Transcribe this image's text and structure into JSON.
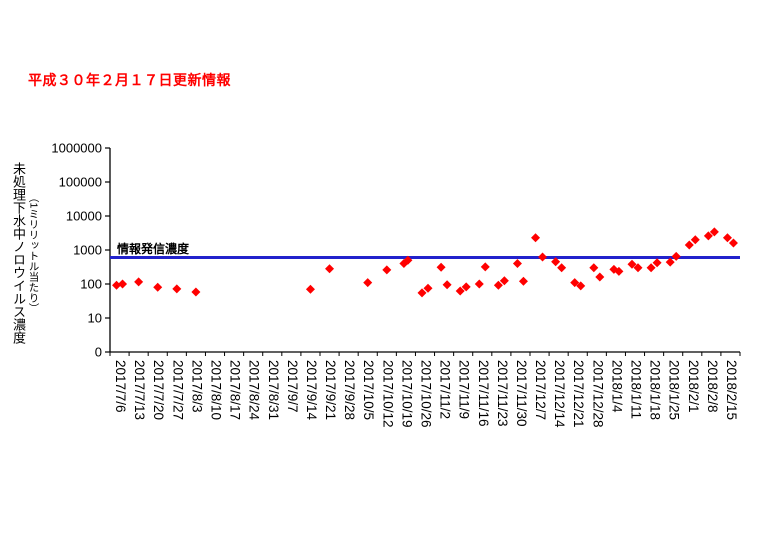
{
  "update_note": "平成３０年２月１７日更新情報",
  "update_note_color": "#FF0000",
  "chart_data": {
    "type": "scatter",
    "title": "",
    "y_axis_scale": "log",
    "grid": "off",
    "legend": "none",
    "ylabel_main": "未処理下水中ノロウイルス濃度",
    "ylabel_sub": "（1ミリリットル当たり）",
    "y_ticks": [
      "0",
      "10",
      "100",
      "1000",
      "10000",
      "100000",
      "1000000"
    ],
    "x_categories": [
      "2017/7/6",
      "2017/7/13",
      "2017/7/20",
      "2017/7/27",
      "2017/8/3",
      "2017/8/10",
      "2017/8/17",
      "2017/8/24",
      "2017/8/31",
      "2017/9/7",
      "2017/9/14",
      "2017/9/21",
      "2017/9/28",
      "2017/10/5",
      "2017/10/12",
      "2017/10/19",
      "2017/10/26",
      "2017/11/2",
      "2017/11/9",
      "2017/11/16",
      "2017/11/23",
      "2017/11/30",
      "2017/12/7",
      "2017/12/14",
      "2017/12/21",
      "2017/12/28",
      "2018/1/4",
      "2018/1/11",
      "2018/1/18",
      "2018/1/25",
      "2018/2/1",
      "2018/2/8",
      "2018/2/15"
    ],
    "threshold": {
      "label": "情報発信濃度",
      "value": 600,
      "color": "#2222CC"
    },
    "marker": {
      "shape": "diamond",
      "color": "#FF0000"
    },
    "points": [
      [
        0,
        92,
        -3
      ],
      [
        0,
        100,
        3
      ],
      [
        1,
        115,
        0
      ],
      [
        2,
        80,
        0
      ],
      [
        3,
        72,
        0
      ],
      [
        4,
        58,
        0
      ],
      [
        10,
        70,
        0
      ],
      [
        11,
        280,
        0
      ],
      [
        13,
        110,
        0
      ],
      [
        14,
        260,
        0
      ],
      [
        15,
        500,
        2
      ],
      [
        15,
        400,
        -2
      ],
      [
        16,
        55,
        -3
      ],
      [
        16,
        75,
        3
      ],
      [
        17,
        310,
        -3
      ],
      [
        17,
        95,
        3
      ],
      [
        18,
        62,
        -3
      ],
      [
        18,
        82,
        3
      ],
      [
        19,
        320,
        3
      ],
      [
        19,
        100,
        -3
      ],
      [
        20,
        125,
        3
      ],
      [
        20,
        92,
        -3
      ],
      [
        21,
        400,
        -3
      ],
      [
        21,
        120,
        3
      ],
      [
        22,
        2300,
        -4
      ],
      [
        22,
        620,
        3
      ],
      [
        23,
        450,
        -3
      ],
      [
        23,
        300,
        3
      ],
      [
        24,
        110,
        -3
      ],
      [
        24,
        88,
        3
      ],
      [
        25,
        300,
        -3
      ],
      [
        25,
        160,
        3
      ],
      [
        26,
        270,
        -2
      ],
      [
        26,
        235,
        3
      ],
      [
        27,
        380,
        -3
      ],
      [
        27,
        300,
        3
      ],
      [
        28,
        420,
        3
      ],
      [
        28,
        300,
        -3
      ],
      [
        29,
        650,
        3
      ],
      [
        29,
        440,
        -3
      ],
      [
        30,
        2000,
        3
      ],
      [
        30,
        1400,
        -3
      ],
      [
        31,
        3400,
        3
      ],
      [
        31,
        2600,
        -3
      ],
      [
        32,
        2300,
        -3
      ],
      [
        32,
        1600,
        3
      ]
    ]
  }
}
